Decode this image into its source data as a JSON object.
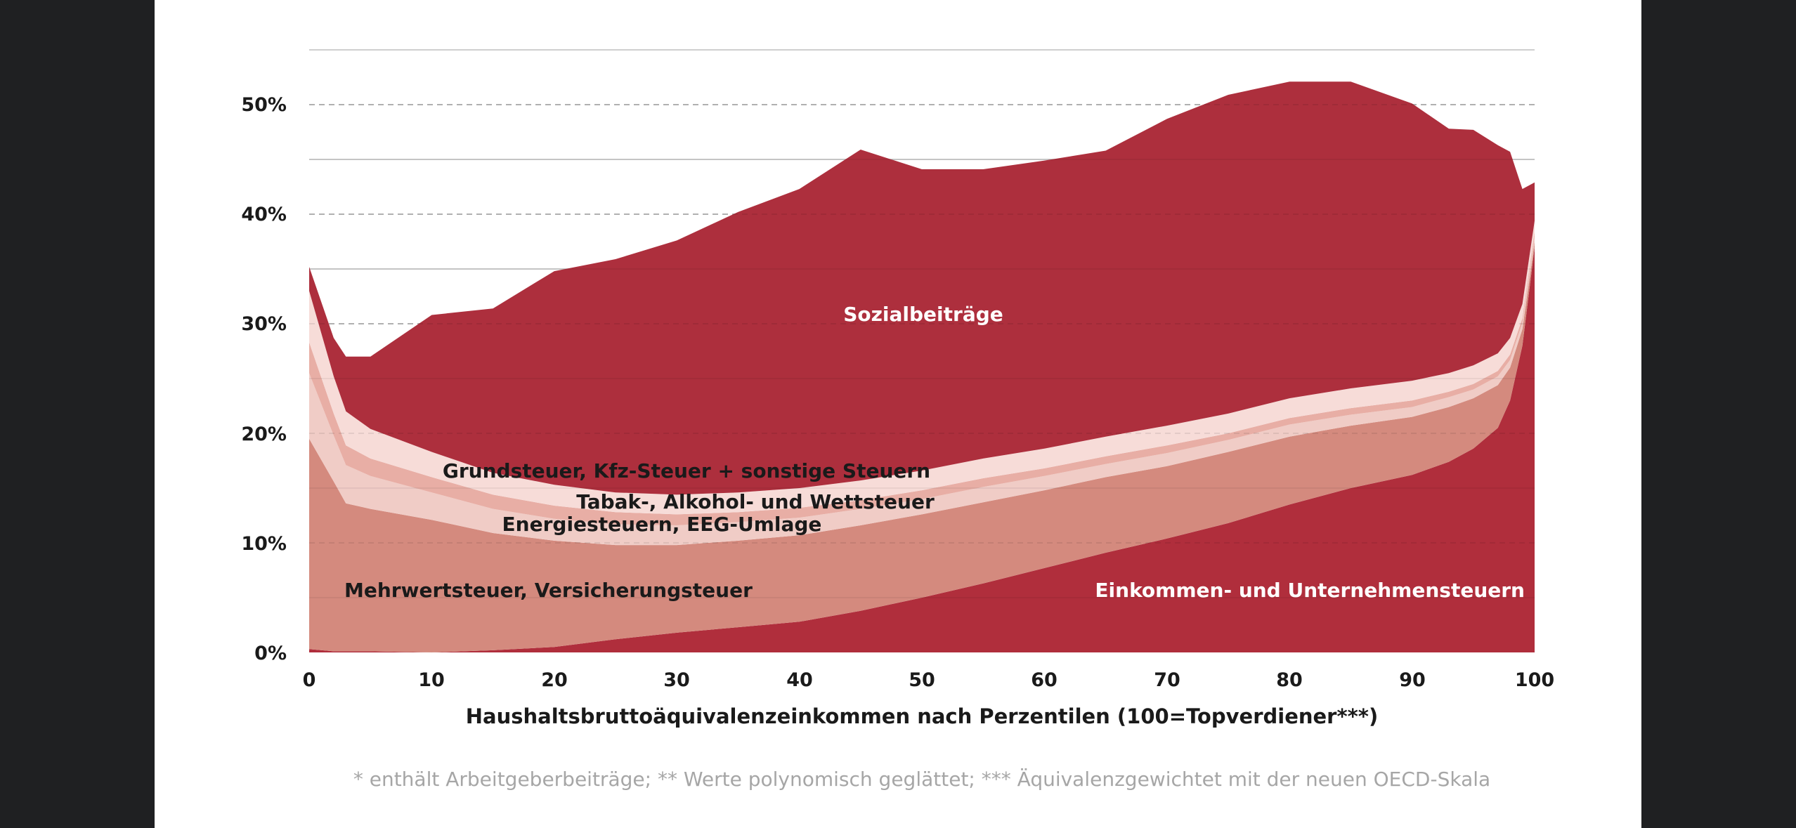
{
  "chart_data": {
    "type": "area",
    "stacked": true,
    "title": "",
    "xlabel": "Haushaltsbruttoäquivalenzeinkommen nach Perzentilen (100=Topverdiener***)",
    "ylabel": "",
    "xlim": [
      0,
      100
    ],
    "ylim": [
      0,
      55
    ],
    "x_ticks": [
      "0",
      "10",
      "20",
      "30",
      "40",
      "50",
      "60",
      "70",
      "80",
      "90",
      "100"
    ],
    "y_ticks": [
      "0%",
      "10%",
      "20%",
      "30%",
      "40%",
      "50%"
    ],
    "x": [
      0,
      2,
      3,
      5,
      10,
      15,
      20,
      25,
      30,
      35,
      40,
      45,
      50,
      55,
      60,
      65,
      70,
      75,
      80,
      85,
      90,
      93,
      95,
      97,
      98,
      99,
      100
    ],
    "series": [
      {
        "name": "Einkommen- und Unternehmensteuern",
        "color": "#b02e3c",
        "label_color": "#ffffff",
        "values": [
          0.3,
          0.1,
          0.1,
          0.1,
          0,
          0.2,
          0.5,
          1.2,
          1.8,
          2.3,
          2.8,
          3.8,
          5.0,
          6.3,
          7.7,
          9.1,
          10.4,
          11.8,
          13.5,
          15.0,
          16.2,
          17.4,
          18.6,
          20.5,
          23.0,
          28.0,
          37.0
        ]
      },
      {
        "name": "Mehrwertsteuer, Versicherungsteuer",
        "color": "#d48a7e",
        "label_color": "#1a1a1a",
        "values": [
          19.2,
          15.5,
          13.5,
          13.0,
          12.1,
          10.7,
          9.7,
          8.6,
          8.0,
          7.9,
          7.9,
          7.8,
          7.6,
          7.4,
          7.1,
          6.9,
          6.6,
          6.5,
          6.2,
          5.7,
          5.3,
          5.0,
          4.6,
          3.9,
          3.0,
          1.5,
          0.5
        ]
      },
      {
        "name": "Energiesteuern, EEG-Umlage",
        "color": "#f0ccc6",
        "label_color": "#1a1a1a",
        "values": [
          6.0,
          4.2,
          3.5,
          3.0,
          2.5,
          2.2,
          2.0,
          1.9,
          1.8,
          1.7,
          1.6,
          1.5,
          1.4,
          1.4,
          1.3,
          1.2,
          1.2,
          1.1,
          1.1,
          1.0,
          0.9,
          0.9,
          0.8,
          0.8,
          0.7,
          0.6,
          0.5
        ]
      },
      {
        "name": "Tabak-, Alkohol- und Wettsteuer",
        "color": "#e8aea5",
        "label_color": "#1a1a1a",
        "values": [
          2.8,
          2.0,
          1.8,
          1.6,
          1.4,
          1.3,
          1.2,
          1.1,
          1.0,
          0.9,
          0.9,
          0.8,
          0.8,
          0.8,
          0.7,
          0.7,
          0.7,
          0.6,
          0.6,
          0.6,
          0.6,
          0.5,
          0.5,
          0.5,
          0.5,
          0.4,
          0.4
        ]
      },
      {
        "name": "Grundsteuer, Kfz-Steuer + sonstige Steuern",
        "color": "#f7dcd8",
        "label_color": "#1a1a1a",
        "values": [
          4.7,
          3.4,
          3.1,
          2.7,
          2.3,
          2.0,
          1.9,
          1.8,
          1.8,
          1.8,
          1.8,
          1.8,
          1.8,
          1.8,
          1.8,
          1.8,
          1.8,
          1.8,
          1.8,
          1.8,
          1.8,
          1.7,
          1.7,
          1.6,
          1.5,
          1.3,
          1.0
        ]
      },
      {
        "name": "Sozialbeiträge",
        "color": "#ad2f3d",
        "label_color": "#ffffff",
        "values": [
          2.2,
          3.5,
          5.0,
          6.6,
          12.5,
          15.0,
          19.5,
          21.3,
          23.2,
          25.6,
          27.3,
          30.2,
          27.5,
          26.4,
          26.3,
          26.1,
          28.0,
          29.1,
          28.9,
          28.0,
          25.3,
          22.3,
          21.5,
          19.0,
          17.0,
          10.5,
          3.5
        ]
      }
    ],
    "footnote": "* enthält Arbeitgeberbeiträge; ** Werte polynomisch geglättet; *** Äquivalenzgewichtet mit der neuen OECD-Skala"
  }
}
